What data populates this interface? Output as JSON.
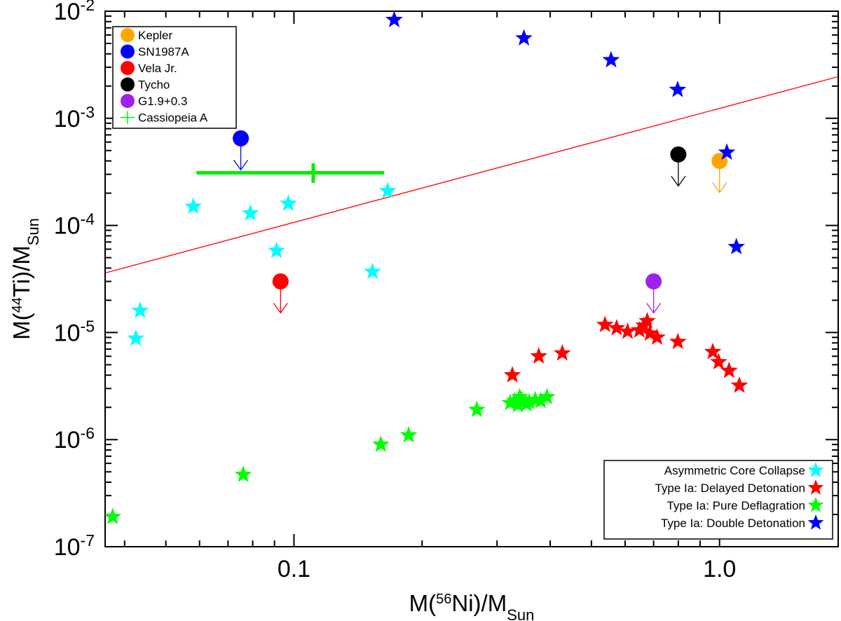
{
  "chart_data": {
    "type": "scatter",
    "xscale": "log",
    "yscale": "log",
    "xlim": [
      0.036,
      1.9
    ],
    "ylim": [
      1e-07,
      0.01
    ],
    "x_ticks": [
      {
        "value": 0.1,
        "label": "0.1"
      },
      {
        "value": 1.0,
        "label": "1.0"
      }
    ],
    "y_ticks": [
      {
        "value": 1e-07,
        "base": "10",
        "exp": "-7"
      },
      {
        "value": 1e-06,
        "base": "10",
        "exp": "-6"
      },
      {
        "value": 1e-05,
        "base": "10",
        "exp": "-5"
      },
      {
        "value": 0.0001,
        "base": "10",
        "exp": "-4"
      },
      {
        "value": 0.001,
        "base": "10",
        "exp": "-3"
      },
      {
        "value": 0.01,
        "base": "10",
        "exp": "-2"
      }
    ],
    "xlabel": {
      "pre": "M(",
      "sup": "56",
      "mid": "Ni)/M",
      "sub": "Sun"
    },
    "ylabel": {
      "pre": "M(",
      "sup": "44",
      "mid": "Ti)/M",
      "sub": "Sun"
    },
    "trend_line": {
      "color": "#ff0000",
      "points": [
        [
          0.036,
          3.6e-05
        ],
        [
          1.9,
          0.00245
        ]
      ]
    },
    "model_series": [
      {
        "name": "Asymmetric Core Collapse",
        "color": "#00ffff",
        "points": [
          [
            0.0425,
            8.8e-06
          ],
          [
            0.0435,
            1.6e-05
          ],
          [
            0.058,
            0.00015
          ],
          [
            0.079,
            0.00013
          ],
          [
            0.091,
            5.8e-05
          ],
          [
            0.097,
            0.00016
          ],
          [
            0.153,
            3.7e-05
          ],
          [
            0.166,
            0.00021
          ]
        ]
      },
      {
        "name": "Type Ia: Delayed Detonation",
        "color": "#ff0000",
        "points": [
          [
            0.326,
            4e-06
          ],
          [
            0.376,
            6e-06
          ],
          [
            0.427,
            6.4e-06
          ],
          [
            0.538,
            1.18e-05
          ],
          [
            0.573,
            1.1e-05
          ],
          [
            0.608,
            1.02e-05
          ],
          [
            0.648,
            1.05e-05
          ],
          [
            0.664,
            1.16e-05
          ],
          [
            0.676,
            1.28e-05
          ],
          [
            0.686,
            9.8e-06
          ],
          [
            0.713,
            9e-06
          ],
          [
            0.798,
            8.2e-06
          ],
          [
            0.964,
            6.6e-06
          ],
          [
            0.995,
            5.3e-06
          ],
          [
            1.053,
            4.4e-06
          ],
          [
            1.113,
            3.2e-06
          ]
        ]
      },
      {
        "name": "Type Ia: Pure Deflagration",
        "color": "#00ff00",
        "points": [
          [
            0.0375,
            1.9e-07
          ],
          [
            0.076,
            4.7e-07
          ],
          [
            0.16,
            9e-07
          ],
          [
            0.186,
            1.1e-06
          ],
          [
            0.269,
            1.9e-06
          ],
          [
            0.322,
            2.2e-06
          ],
          [
            0.33,
            2.3e-06
          ],
          [
            0.336,
            2.1e-06
          ],
          [
            0.339,
            2.5e-06
          ],
          [
            0.343,
            2.35e-06
          ],
          [
            0.352,
            2.15e-06
          ],
          [
            0.357,
            2.25e-06
          ],
          [
            0.369,
            2.35e-06
          ],
          [
            0.38,
            2.3e-06
          ],
          [
            0.393,
            2.5e-06
          ]
        ]
      },
      {
        "name": "Type Ia: Double Detonation",
        "color": "#0000ff",
        "points": [
          [
            0.172,
            0.0083
          ],
          [
            0.347,
            0.0056
          ],
          [
            0.556,
            0.0035
          ],
          [
            0.797,
            0.00185
          ],
          [
            1.04,
            0.00048
          ],
          [
            1.095,
            6.3e-05
          ]
        ]
      }
    ],
    "observations": [
      {
        "name": "Kepler",
        "color": "#ffa500",
        "x": 1.0,
        "y": 0.0004,
        "upper_limit": true
      },
      {
        "name": "SN1987A",
        "color": "#0000ff",
        "x": 0.075,
        "y": 0.00065,
        "upper_limit": true
      },
      {
        "name": "Vela Jr.",
        "color": "#ff0000",
        "x": 0.093,
        "y": 3e-05,
        "upper_limit": true
      },
      {
        "name": "Tycho",
        "color": "#000000",
        "x": 0.8,
        "y": 0.00046,
        "upper_limit": true
      },
      {
        "name": "G1.9+0.3",
        "color": "#a020f0",
        "x": 0.7,
        "y": 3e-05,
        "upper_limit": true
      },
      {
        "name": "Cassiopeia A",
        "color": "#00ee00",
        "x": 0.111,
        "y": 0.00031,
        "upper_limit": false,
        "x_err": [
          0.059,
          0.163
        ],
        "y_err": [
          0.00025,
          0.00038
        ]
      }
    ],
    "legend_obs_position": "top-left",
    "legend_models_position": "bottom-right"
  }
}
